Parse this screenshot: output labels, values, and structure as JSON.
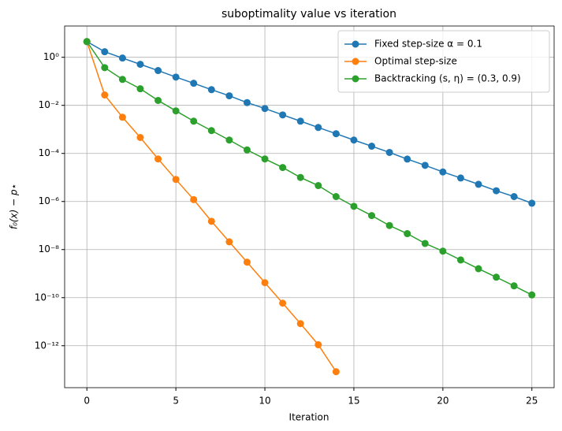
{
  "chart_data": {
    "type": "line",
    "title": "suboptimality value vs iteration",
    "x_label": "Iteration",
    "y_label": "f₀(x) − p⋆",
    "x": [
      0,
      1,
      2,
      3,
      4,
      5,
      6,
      7,
      8,
      9,
      10,
      11,
      12,
      13,
      14,
      15,
      16,
      17,
      18,
      19,
      20,
      21,
      22,
      23,
      24,
      25
    ],
    "series": [
      {
        "name": "Fixed step-size α = 0.1",
        "color": "#1f77b4",
        "values": [
          4.5,
          1.7,
          0.93,
          0.51,
          0.28,
          0.15,
          0.083,
          0.045,
          0.025,
          0.013,
          0.0074,
          0.004,
          0.0022,
          0.0012,
          0.00066,
          0.00036,
          0.0002,
          0.00011,
          5.8e-05,
          3.2e-05,
          1.7e-05,
          9.5e-06,
          5.2e-06,
          2.8e-06,
          1.6e-06,
          8.5e-07
        ]
      },
      {
        "name": "Optimal step-size",
        "color": "#ff7f0e",
        "values": [
          4.5,
          0.027,
          0.0032,
          0.00046,
          5.9e-05,
          8.3e-06,
          1.2e-06,
          1.5e-07,
          2.1e-08,
          3e-09,
          4.2e-10,
          5.9e-11,
          8.3e-12,
          1.1e-12,
          8.3e-14,
          null,
          null,
          null,
          null,
          null,
          null,
          null,
          null,
          null,
          null,
          null
        ]
      },
      {
        "name": "Backtracking (s, η) = (0.3, 0.9)",
        "color": "#2ca02c",
        "values": [
          4.5,
          0.37,
          0.12,
          0.049,
          0.016,
          0.0059,
          0.0022,
          0.00089,
          0.00036,
          0.00014,
          5.9e-05,
          2.6e-05,
          1e-05,
          4.6e-06,
          1.6e-06,
          6.3e-07,
          2.6e-07,
          1e-07,
          4.6e-08,
          1.8e-08,
          8.6e-09,
          3.7e-09,
          1.6e-09,
          7.1e-10,
          3.1e-10,
          1.3e-10
        ]
      }
    ],
    "xlim": [
      -1.25,
      26.25
    ],
    "xticks": [
      0,
      5,
      10,
      15,
      20,
      25
    ],
    "ylim": [
      1.8e-14,
      20
    ],
    "log_y": true,
    "yticks": [
      {
        "value": 1e-12,
        "label": "10⁻¹²"
      },
      {
        "value": 1e-10,
        "label": "10⁻¹⁰"
      },
      {
        "value": 1e-08,
        "label": "10⁻⁸"
      },
      {
        "value": 1e-06,
        "label": "10⁻⁶"
      },
      {
        "value": 0.0001,
        "label": "10⁻⁴"
      },
      {
        "value": 0.01,
        "label": "10⁻²"
      },
      {
        "value": 1,
        "label": "10⁰"
      }
    ],
    "grid": true,
    "legend": "upper right"
  }
}
